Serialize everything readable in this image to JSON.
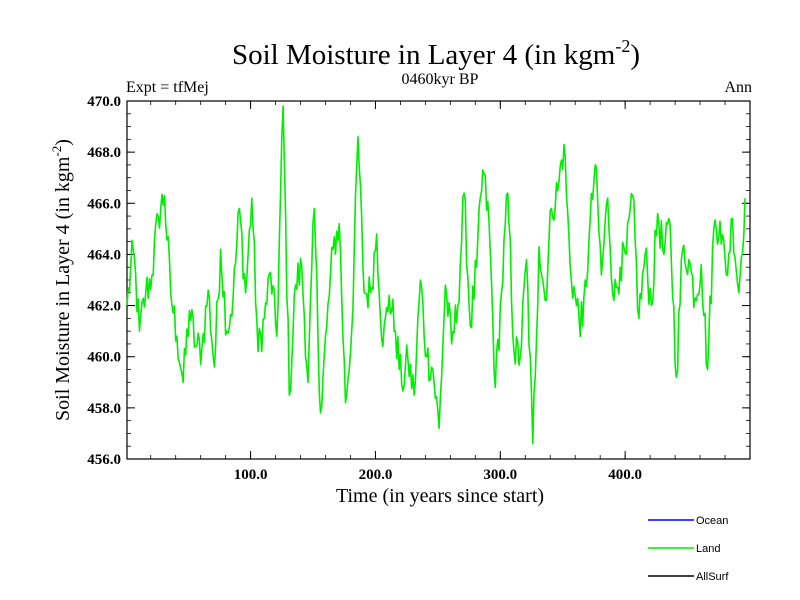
{
  "header": {
    "title": "Soil Moisture in Layer 4 (in kgm",
    "title_sup": "-2",
    "title_close": ")",
    "left_label": "Expt = tfMej",
    "center_label": "0460kyr BP",
    "right_label": "Ann"
  },
  "chart_data": {
    "type": "line",
    "title": "Soil Moisture in Layer 4 (in kgm-2)",
    "xlabel": "Time (in years since start)",
    "ylabel": "Soil Moisture in Layer 4 (in kgm",
    "ylabel_sup": "-2",
    "ylabel_close": ")",
    "xlim": [
      1,
      500
    ],
    "ylim": [
      456.0,
      470.0
    ],
    "x_ticks": [
      100,
      200,
      300,
      400
    ],
    "x_tick_labels": [
      "100.0",
      "200.0",
      "300.0",
      "400.0"
    ],
    "y_ticks": [
      456,
      458,
      460,
      462,
      464,
      466,
      468,
      470
    ],
    "y_tick_labels": [
      "456.0",
      "458.0",
      "460.0",
      "462.0",
      "464.0",
      "466.0",
      "468.0",
      "470.0"
    ],
    "legend": [
      "Ocean",
      "Land",
      "AllSurf"
    ],
    "legend_colors": [
      "#0000ff",
      "#00ee00",
      "#000000"
    ],
    "series": [
      {
        "name": "Land",
        "color": "#00ee00",
        "x_start": 1,
        "x_step": 5,
        "values": [
          462.0,
          464.2,
          461.0,
          462.5,
          463.2,
          465.5,
          466.3,
          462.5,
          460.8,
          459.0,
          461.8,
          460.4,
          460.3,
          462.6,
          459.6,
          464.2,
          461.0,
          462.3,
          465.8,
          462.5,
          466.2,
          460.2,
          461.5,
          463.3,
          460.8,
          469.8,
          458.5,
          462.8,
          463.5,
          459.0,
          465.8,
          457.8,
          461.2,
          464.2,
          465.2,
          458.2,
          461.0,
          468.6,
          462.5,
          462.5,
          464.8,
          460.4,
          462.4,
          461.0,
          458.9,
          459.9,
          458.5,
          463.0,
          460.0,
          459.5,
          457.2,
          462.8,
          460.5,
          462.0,
          466.4,
          461.2,
          463.5,
          467.3,
          465.2,
          458.8,
          462.5,
          466.4,
          460.2,
          460.0,
          463.8,
          456.6,
          464.3,
          462.2,
          465.8,
          466.5,
          468.3,
          463.5,
          462.0,
          461.2,
          464.5,
          467.5,
          463.2,
          466.2,
          462.2,
          463.5,
          464.0,
          466.3,
          461.5,
          464.0,
          462.0,
          465.6,
          464.0,
          465.2,
          459.2,
          464.2,
          463.8,
          462.3,
          463.6,
          459.5,
          465.0,
          465.3,
          463.2,
          465.4,
          462.5,
          466.2
        ]
      }
    ]
  }
}
